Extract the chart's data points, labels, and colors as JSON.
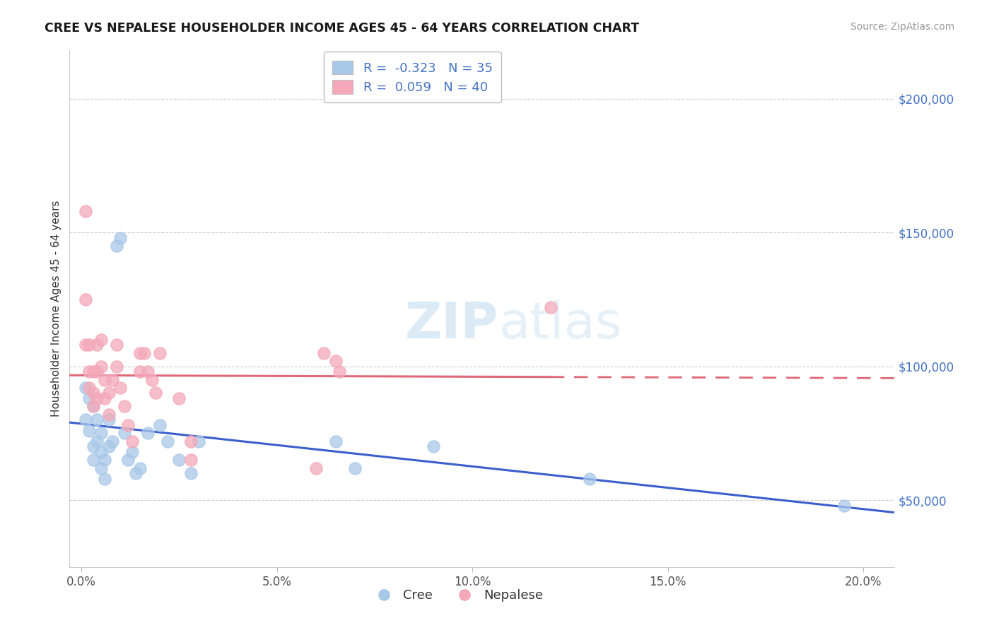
{
  "title": "CREE VS NEPALESE HOUSEHOLDER INCOME AGES 45 - 64 YEARS CORRELATION CHART",
  "source": "Source: ZipAtlas.com",
  "ylabel": "Householder Income Ages 45 - 64 years",
  "xlabel_ticks": [
    "0.0%",
    "5.0%",
    "10.0%",
    "15.0%",
    "20.0%"
  ],
  "xlabel_vals": [
    0.0,
    0.05,
    0.1,
    0.15,
    0.2
  ],
  "ytick_labels": [
    "$50,000",
    "$100,000",
    "$150,000",
    "$200,000"
  ],
  "ytick_vals": [
    50000,
    100000,
    150000,
    200000
  ],
  "xlim": [
    -0.003,
    0.208
  ],
  "ylim": [
    25000,
    218000
  ],
  "cree_R": -0.323,
  "cree_N": 35,
  "nepalese_R": 0.059,
  "nepalese_N": 40,
  "cree_color": "#a8c8e8",
  "nepalese_color": "#f4a8b8",
  "cree_line_color": "#3a5fcd",
  "nepalese_line_color": "#e06878",
  "background_color": "#ffffff",
  "watermark_zip": "ZIP",
  "watermark_atlas": "atlas",
  "cree_x": [
    0.001,
    0.001,
    0.002,
    0.002,
    0.003,
    0.003,
    0.003,
    0.004,
    0.004,
    0.005,
    0.005,
    0.005,
    0.006,
    0.006,
    0.007,
    0.007,
    0.008,
    0.009,
    0.01,
    0.011,
    0.012,
    0.013,
    0.014,
    0.015,
    0.017,
    0.02,
    0.022,
    0.025,
    0.028,
    0.03,
    0.065,
    0.07,
    0.09,
    0.13,
    0.195
  ],
  "cree_y": [
    92000,
    80000,
    88000,
    76000,
    85000,
    70000,
    65000,
    80000,
    72000,
    68000,
    75000,
    62000,
    65000,
    58000,
    80000,
    70000,
    72000,
    145000,
    148000,
    75000,
    65000,
    68000,
    60000,
    62000,
    75000,
    78000,
    72000,
    65000,
    60000,
    72000,
    72000,
    62000,
    70000,
    58000,
    48000
  ],
  "nepalese_x": [
    0.001,
    0.001,
    0.001,
    0.002,
    0.002,
    0.002,
    0.003,
    0.003,
    0.003,
    0.004,
    0.004,
    0.004,
    0.005,
    0.005,
    0.006,
    0.006,
    0.007,
    0.007,
    0.008,
    0.009,
    0.009,
    0.01,
    0.011,
    0.012,
    0.013,
    0.015,
    0.015,
    0.016,
    0.017,
    0.018,
    0.019,
    0.02,
    0.025,
    0.028,
    0.028,
    0.06,
    0.062,
    0.065,
    0.066,
    0.12
  ],
  "nepalese_y": [
    158000,
    125000,
    108000,
    108000,
    98000,
    92000,
    98000,
    90000,
    85000,
    108000,
    98000,
    88000,
    110000,
    100000,
    95000,
    88000,
    90000,
    82000,
    95000,
    108000,
    100000,
    92000,
    85000,
    78000,
    72000,
    105000,
    98000,
    105000,
    98000,
    95000,
    90000,
    105000,
    88000,
    72000,
    65000,
    62000,
    105000,
    102000,
    98000,
    122000
  ]
}
